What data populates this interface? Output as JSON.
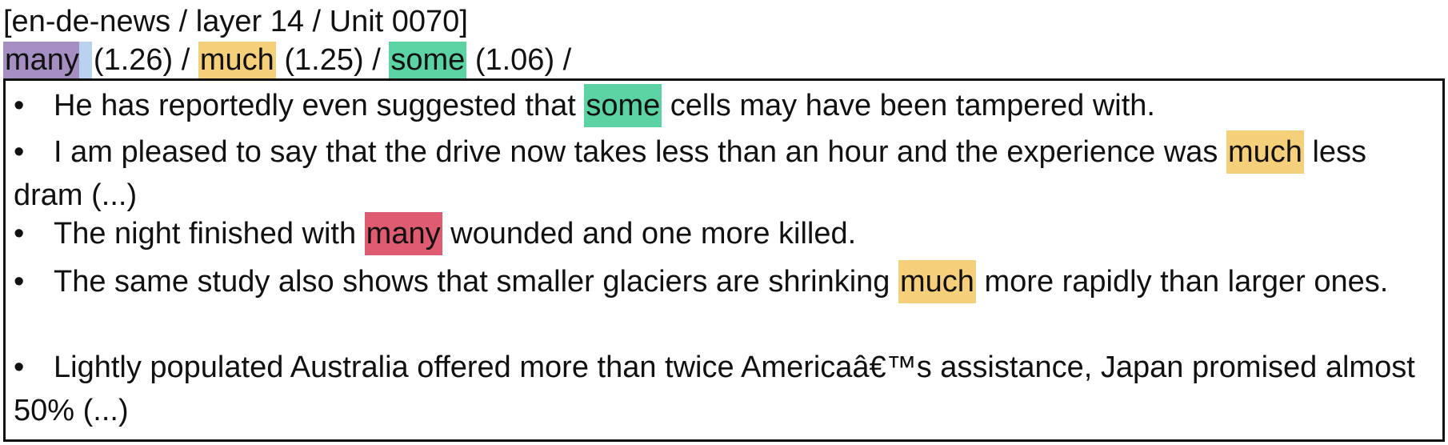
{
  "header": "[en-de-news / layer 14 / Unit 0070]",
  "summary": {
    "items": [
      {
        "token": "many",
        "score_text": "(1.26)"
      },
      {
        "token": "much",
        "score_text": "(1.25)"
      },
      {
        "token": "some",
        "score_text": "(1.06)"
      }
    ],
    "sep": "/"
  },
  "sentences": [
    {
      "pre": "He has reportedly even suggested that ",
      "token": "some",
      "post": " cells may have been tampered with."
    },
    {
      "pre": "I am pleased to say that the drive now takes less than an hour and the experience was ",
      "token": "much",
      "post": " less dram (...)"
    },
    {
      "pre": "The night finished with ",
      "token": "many",
      "post": " wounded and one more killed."
    },
    {
      "pre": "The same study also shows that smaller glaciers are shrinking ",
      "token": "much",
      "post": " more rapidly than larger ones."
    },
    {
      "pre": "Lightly populated Australia offered more than twice Americaâ€™s assistance, Japan promised almost 50% (...)",
      "token": "",
      "post": ""
    }
  ],
  "bullet": "•",
  "colors": {
    "many_summary": "#a58fc2",
    "many_sentence": "#df5b72",
    "much": "#f6cf7a",
    "some": "#5bd3a3",
    "mini_blue": "#b9d2ef"
  }
}
